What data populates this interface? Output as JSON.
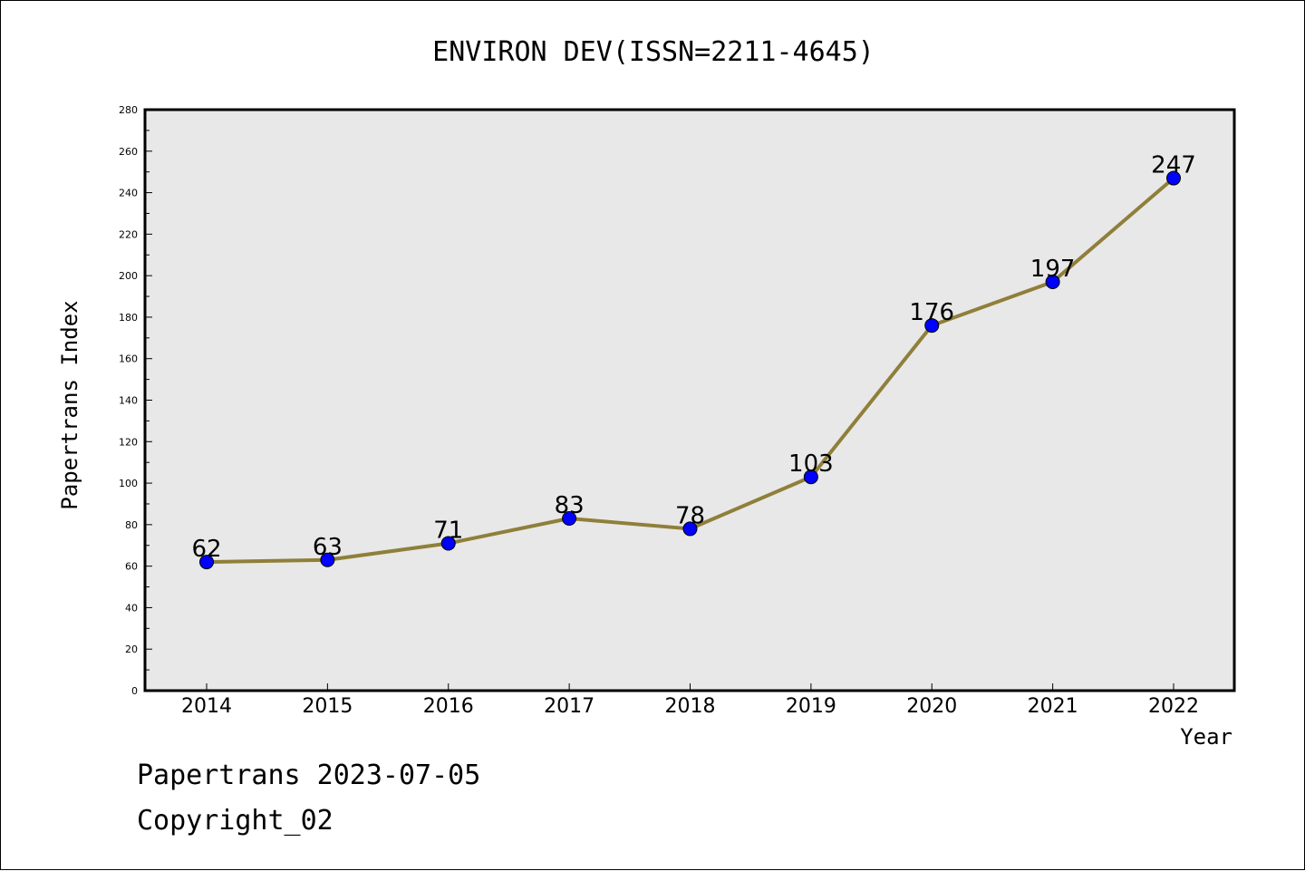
{
  "chart_data": {
    "type": "line",
    "title": "ENVIRON DEV(ISSN=2211-4645)",
    "xlabel": "Year",
    "ylabel": "Papertrans Index",
    "categories": [
      "2014",
      "2015",
      "2016",
      "2017",
      "2018",
      "2019",
      "2020",
      "2021",
      "2022"
    ],
    "values": [
      62,
      63,
      71,
      83,
      78,
      103,
      176,
      197,
      247
    ],
    "data_labels": [
      "62",
      "63",
      "71",
      "83",
      "78",
      "103",
      "176",
      "197",
      "247"
    ],
    "ylim": [
      0,
      280
    ],
    "yticks": [
      0,
      20,
      40,
      60,
      80,
      100,
      120,
      140,
      160,
      180,
      200,
      220,
      240,
      260,
      280
    ],
    "ytick_labels": [
      "0",
      "20",
      "40",
      "60",
      "80",
      "100",
      "120",
      "140",
      "160",
      "180",
      "200",
      "220",
      "240",
      "260",
      "280"
    ],
    "grid": false,
    "line_color": "#8f7f3a",
    "marker_color": "#0000ff",
    "plot_background": "#e8e8e8"
  },
  "footer": {
    "line1": "Papertrans 2023-07-05",
    "line2": "Copyright_02"
  }
}
